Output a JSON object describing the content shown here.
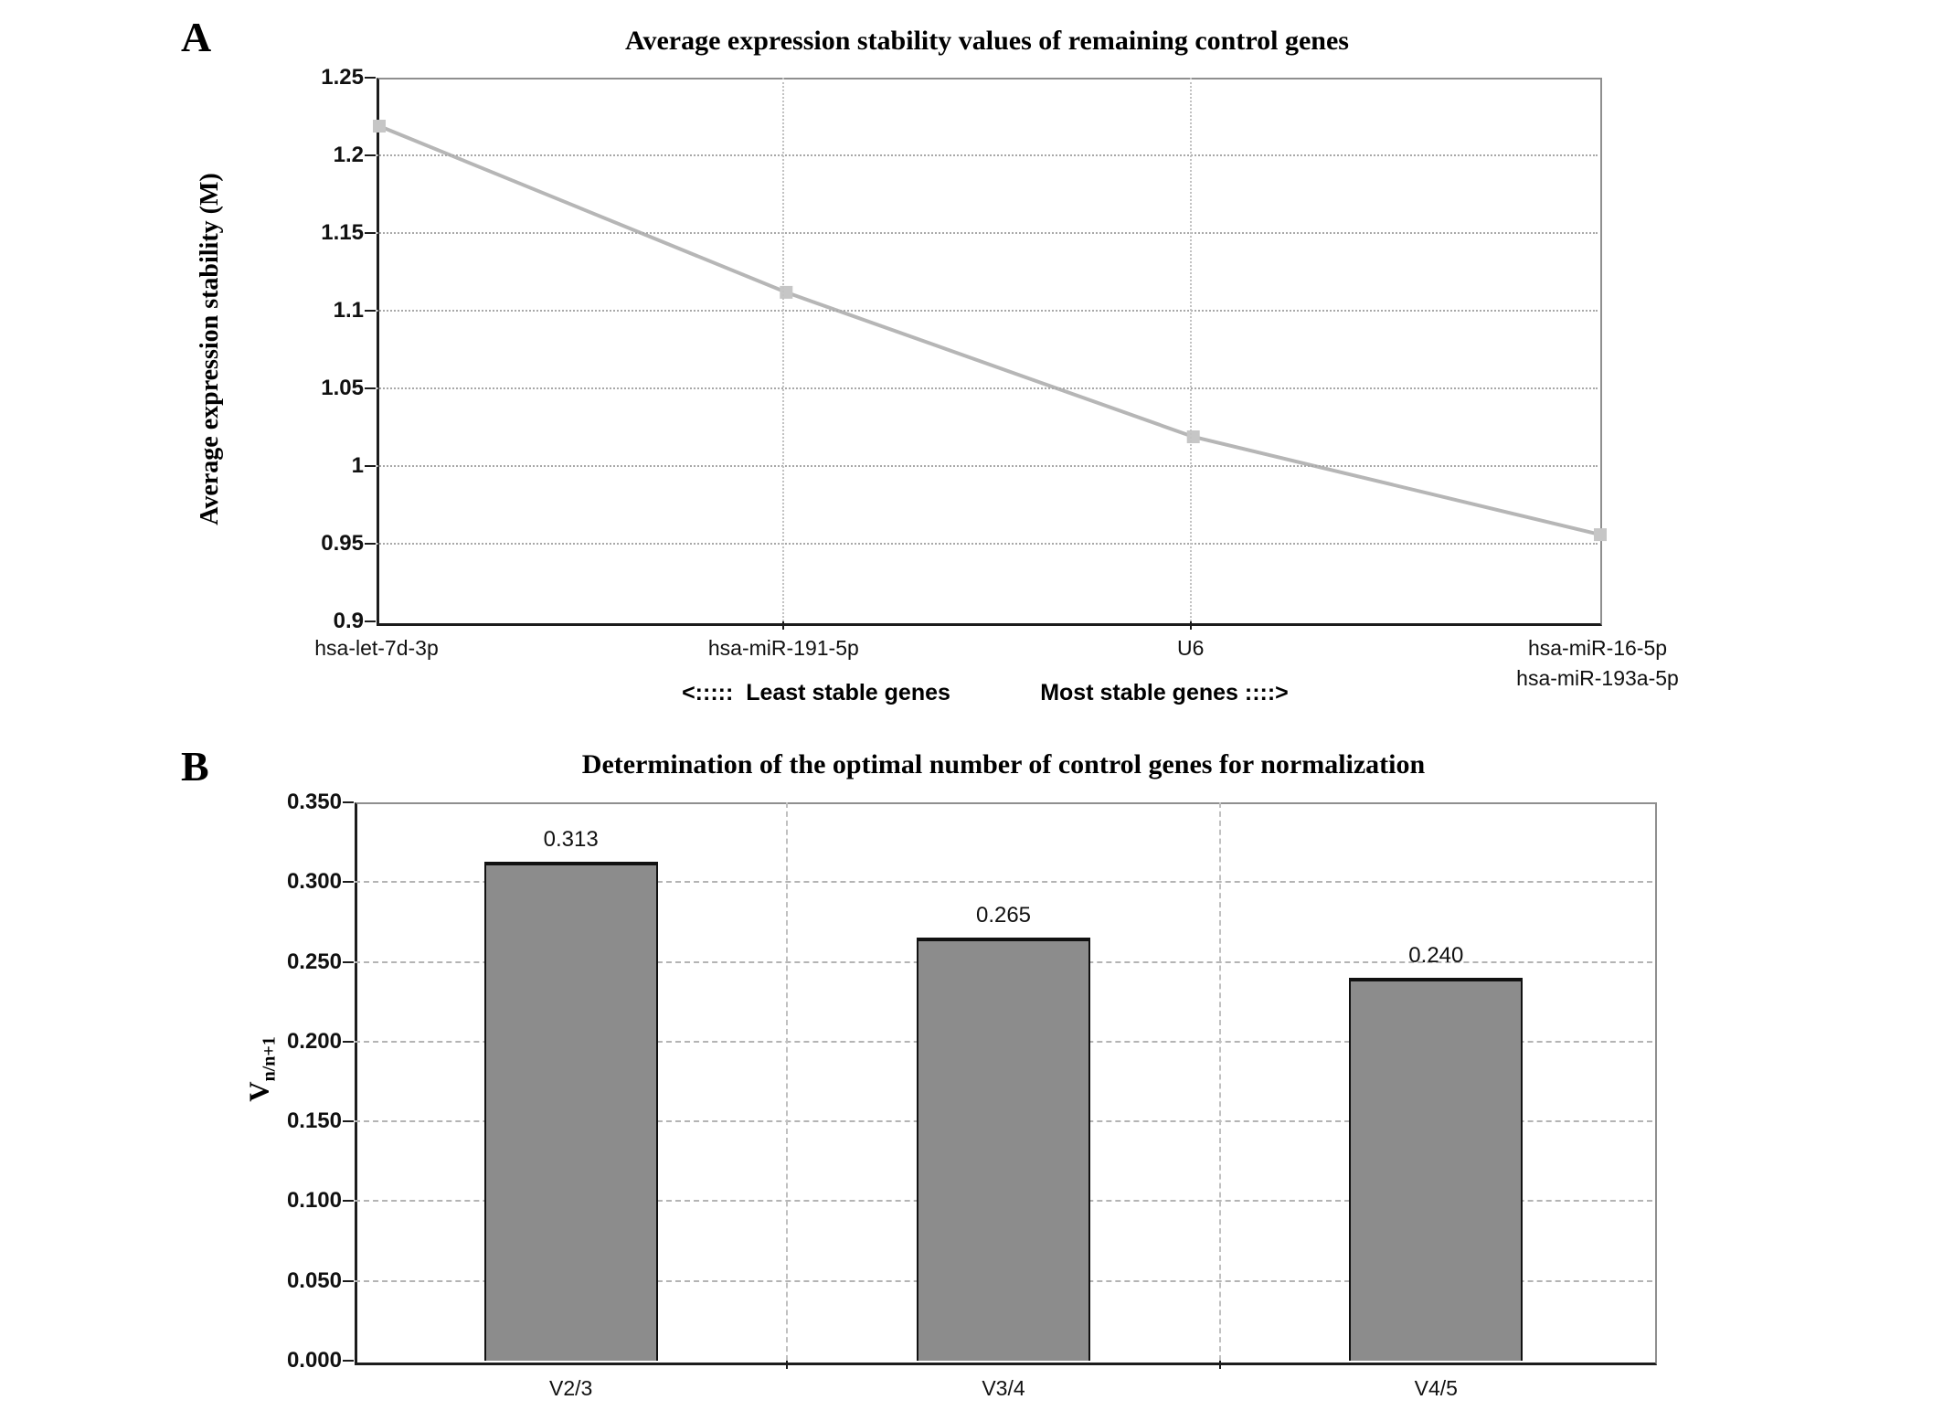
{
  "panels": [
    {
      "label": "A",
      "title": "Average expression stability values of remaining control genes",
      "annotation_left": "<:::::  Least stable genes",
      "annotation_right": "Most stable genes ::::>"
    },
    {
      "label": "B",
      "title": "Determination of the optimal number of control genes for normalization"
    }
  ],
  "chart_data": [
    {
      "type": "line",
      "panel": "A",
      "title": "Average expression stability values of remaining control genes",
      "ylabel": "Average expression stability (M)",
      "categories": [
        "hsa-let-7d-3p",
        "hsa-miR-191-5p",
        "U6",
        "hsa-miR-16-5p\nhsa-miR-193a-5p"
      ],
      "values": [
        1.22,
        1.113,
        1.02,
        0.957
      ],
      "ylim": [
        0.9,
        1.25
      ],
      "yticks": [
        0.9,
        0.95,
        1.0,
        1.05,
        1.1,
        1.15,
        1.2,
        1.25
      ],
      "ytick_labels": [
        "0.9",
        "0.95",
        "1",
        "1.05",
        "1.1",
        "1.15",
        "1.2",
        "1.25"
      ],
      "grid": true,
      "annotations": [
        "<:::::  Least stable genes",
        "Most stable genes ::::>"
      ],
      "line_color": "#b6b6b6",
      "marker": "square",
      "marker_color": "#c6c6c6"
    },
    {
      "type": "bar",
      "panel": "B",
      "title": "Determination of the optimal number of control genes for normalization",
      "ylabel_base": "V",
      "ylabel_sub": "n/n+1",
      "categories": [
        "V2/3",
        "V3/4",
        "V4/5"
      ],
      "values": [
        0.313,
        0.265,
        0.24
      ],
      "value_labels": [
        "0.313",
        "0.265",
        "0.240"
      ],
      "ylim": [
        0,
        0.35
      ],
      "yticks": [
        0,
        0.05,
        0.1,
        0.15,
        0.2,
        0.25,
        0.3,
        0.35
      ],
      "ytick_labels": [
        "0.000",
        "0.050",
        "0.100",
        "0.150",
        "0.200",
        "0.250",
        "0.300",
        "0.350"
      ],
      "grid": true,
      "bar_color": "#8c8c8c",
      "bar_border_color": "#111111"
    }
  ]
}
